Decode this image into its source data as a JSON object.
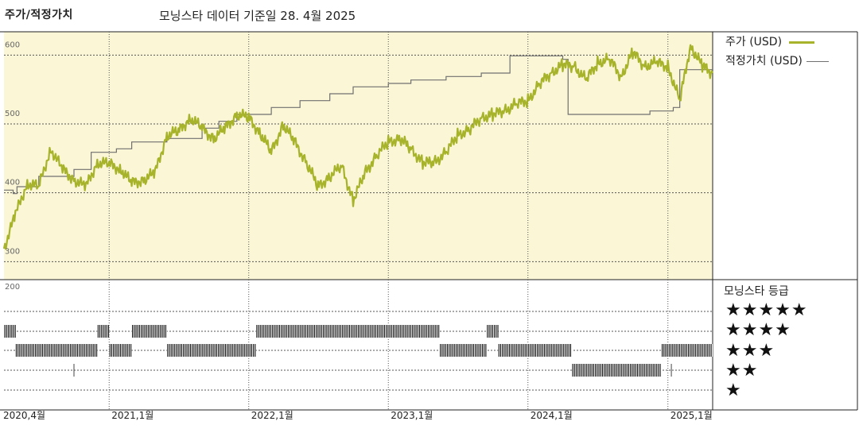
{
  "header": {
    "title": "주가/적정가치",
    "subtitle": "모닝스타 데이터 기준일 28. 4월 2025"
  },
  "legend": {
    "price_label": "주가 (USD)",
    "fair_value_label": "적정가치 (USD)",
    "price_color": "#a7b32a",
    "fair_value_color": "#707070"
  },
  "rating_panel": {
    "title": "모닝스타 등급",
    "levels": [
      "★★★★★",
      "★★★★",
      "★★★",
      "★★",
      "★"
    ]
  },
  "colors": {
    "plot_background": "#faf6d6",
    "grid": "#555555",
    "rating_bar": "#111111"
  },
  "chart_data": {
    "type": "line",
    "title": "주가/적정가치",
    "subtitle": "모닝스타 데이터 기준일 28. 4월 2025",
    "x_range": [
      "2020-04-01",
      "2025-04-28"
    ],
    "x_ticks": [
      {
        "label": "2020,4월",
        "date": "2020-04-01"
      },
      {
        "label": "2021,1월",
        "date": "2021-01-01"
      },
      {
        "label": "2022,1월",
        "date": "2022-01-01"
      },
      {
        "label": "2023,1월",
        "date": "2023-01-01"
      },
      {
        "label": "2024,1월",
        "date": "2024-01-01"
      },
      {
        "label": "2025,1월",
        "date": "2025-01-01"
      }
    ],
    "y_ticks": [
      "600",
      "500",
      "400",
      "300",
      "200"
    ],
    "ylim_upper": [
      260,
      620
    ],
    "series": [
      {
        "name": "주가 (USD)",
        "x": [
          "2020-04-01",
          "2020-05-01",
          "2020-06-01",
          "2020-07-01",
          "2020-08-01",
          "2020-09-01",
          "2020-10-01",
          "2020-11-01",
          "2020-12-01",
          "2021-01-01",
          "2021-02-01",
          "2021-03-01",
          "2021-04-01",
          "2021-05-01",
          "2021-06-01",
          "2021-07-01",
          "2021-08-01",
          "2021-09-01",
          "2021-10-01",
          "2021-11-01",
          "2021-12-01",
          "2022-01-01",
          "2022-02-01",
          "2022-03-01",
          "2022-04-01",
          "2022-05-01",
          "2022-06-01",
          "2022-07-01",
          "2022-08-01",
          "2022-09-01",
          "2022-10-01",
          "2022-11-01",
          "2022-12-01",
          "2023-01-01",
          "2023-02-01",
          "2023-03-01",
          "2023-04-01",
          "2023-05-01",
          "2023-06-01",
          "2023-07-01",
          "2023-08-01",
          "2023-09-01",
          "2023-10-01",
          "2023-11-01",
          "2023-12-01",
          "2024-01-01",
          "2024-02-01",
          "2024-03-01",
          "2024-04-01",
          "2024-05-01",
          "2024-06-01",
          "2024-07-01",
          "2024-08-01",
          "2024-09-01",
          "2024-10-01",
          "2024-11-01",
          "2024-12-01",
          "2025-01-01",
          "2025-02-01",
          "2025-03-01",
          "2025-04-01",
          "2025-04-28"
        ],
        "values": [
          305,
          355,
          400,
          395,
          450,
          420,
          405,
          395,
          430,
          428,
          420,
          400,
          405,
          415,
          470,
          475,
          495,
          480,
          465,
          480,
          500,
          495,
          472,
          445,
          485,
          460,
          430,
          395,
          410,
          425,
          375,
          415,
          440,
          460,
          465,
          450,
          430,
          430,
          445,
          470,
          478,
          495,
          500,
          505,
          515,
          520,
          545,
          560,
          572,
          570,
          550,
          575,
          580,
          555,
          590,
          570,
          575,
          570,
          520,
          600,
          570,
          560
        ]
      },
      {
        "name": "적정가치 (USD)",
        "x": [
          "2020-04-01",
          "2020-04-25",
          "2020-05-05",
          "2020-07-01",
          "2020-10-01",
          "2020-11-15",
          "2021-01-20",
          "2021-03-01",
          "2021-06-01",
          "2021-09-01",
          "2021-10-15",
          "2021-12-01",
          "2022-03-01",
          "2022-05-15",
          "2022-08-01",
          "2022-10-01",
          "2023-01-01",
          "2023-03-01",
          "2023-06-01",
          "2023-09-01",
          "2023-11-15",
          "2024-01-01",
          "2024-04-01",
          "2024-04-15",
          "2024-07-01",
          "2024-08-01",
          "2024-11-15",
          "2025-01-15",
          "2025-02-01",
          "2025-04-28"
        ],
        "values": [
          390,
          385,
          395,
          410,
          420,
          445,
          450,
          460,
          465,
          480,
          490,
          500,
          510,
          520,
          530,
          540,
          545,
          550,
          555,
          560,
          585,
          585,
          580,
          500,
          500,
          500,
          505,
          510,
          565,
          565
        ]
      }
    ],
    "star_rating": {
      "levels": [
        5,
        4,
        3,
        2,
        1
      ],
      "periods": [
        {
          "stars": 5,
          "start": "2020-04-01",
          "end": "2020-05-01"
        },
        {
          "stars": 3,
          "start": "2020-05-01",
          "end": "2020-12-01"
        },
        {
          "stars": 4,
          "start": "2020-12-01",
          "end": "2021-01-01"
        },
        {
          "stars": 3,
          "start": "2021-01-01",
          "end": "2021-03-01"
        },
        {
          "stars": 4,
          "start": "2021-03-01",
          "end": "2021-06-01"
        },
        {
          "stars": 3,
          "start": "2021-06-01",
          "end": "2022-01-20"
        },
        {
          "stars": 4,
          "start": "2022-01-20",
          "end": "2023-05-15"
        },
        {
          "stars": 3,
          "start": "2023-05-15",
          "end": "2023-09-15"
        },
        {
          "stars": 4,
          "start": "2023-09-15",
          "end": "2023-10-15"
        },
        {
          "stars": 3,
          "start": "2023-10-15",
          "end": "2024-04-25"
        },
        {
          "stars": 2,
          "start": "2024-04-25",
          "end": "2024-12-15"
        },
        {
          "stars": 3,
          "start": "2024-12-15",
          "end": "2025-04-28"
        }
      ],
      "blips": [
        {
          "stars": 2,
          "date": "2020-10-01"
        },
        {
          "stars": 2,
          "date": "2025-01-10"
        }
      ]
    }
  }
}
